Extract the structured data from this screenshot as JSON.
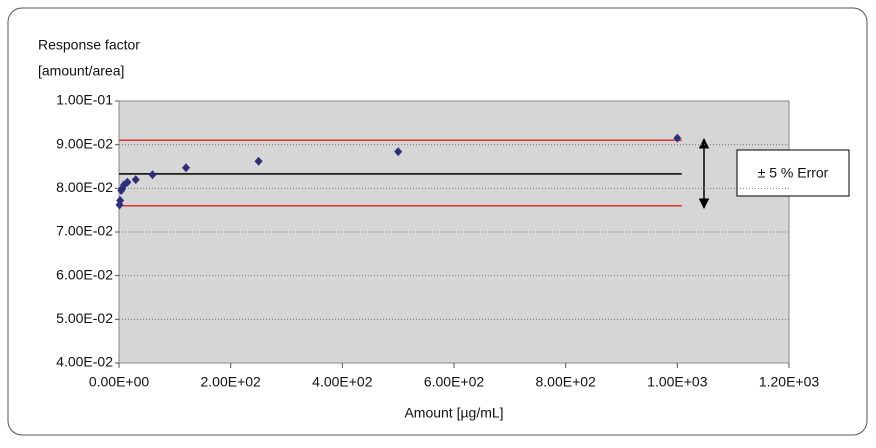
{
  "chart_data": {
    "type": "scatter",
    "y_label": [
      "Response factor",
      "[amount/area]"
    ],
    "x_label": "Amount [µg/mL]",
    "annotation": "± 5 % Error",
    "series": [
      {
        "color": "#2e2e7a",
        "x": [
          1,
          2,
          4,
          6,
          9,
          15,
          30,
          60,
          120,
          250,
          500,
          1000
        ],
        "values": [
          0.0762,
          0.0772,
          0.0795,
          0.08,
          0.0808,
          0.0814,
          0.082,
          0.0831,
          0.0847,
          0.0862,
          0.0884,
          0.0915
        ]
      }
    ],
    "lines": [
      {
        "color": "#e03030",
        "x": [
          0,
          1008
        ],
        "values": [
          0.091,
          0.091
        ]
      },
      {
        "color": "#000000",
        "x": [
          0,
          1008
        ],
        "values": [
          0.0833,
          0.0833
        ]
      },
      {
        "color": "#e03030",
        "x": [
          0,
          1008
        ],
        "values": [
          0.076,
          0.076
        ]
      }
    ],
    "xlim": [
      0,
      1200
    ],
    "xticks": [
      {
        "value": 0,
        "label": "0.00E+00"
      },
      {
        "value": 200,
        "label": "2.00E+02"
      },
      {
        "value": 400,
        "label": "4.00E+02"
      },
      {
        "value": 600,
        "label": "6.00E+02"
      },
      {
        "value": 800,
        "label": "8.00E+02"
      },
      {
        "value": 1000,
        "label": "1.00E+03"
      },
      {
        "value": 1200,
        "label": "1.20E+03"
      }
    ],
    "ylim": [
      0.04,
      0.1
    ],
    "yticks": [
      {
        "value": 0.04,
        "label": "4.00E-02"
      },
      {
        "value": 0.05,
        "label": "5.00E-02"
      },
      {
        "value": 0.06,
        "label": "6.00E-02"
      },
      {
        "value": 0.07,
        "label": "7.00E-02"
      },
      {
        "value": 0.08,
        "label": "8.00E-02"
      },
      {
        "value": 0.09,
        "label": "9.00E-02"
      },
      {
        "value": 0.1,
        "label": "1.00E-01"
      }
    ],
    "grid": true
  }
}
